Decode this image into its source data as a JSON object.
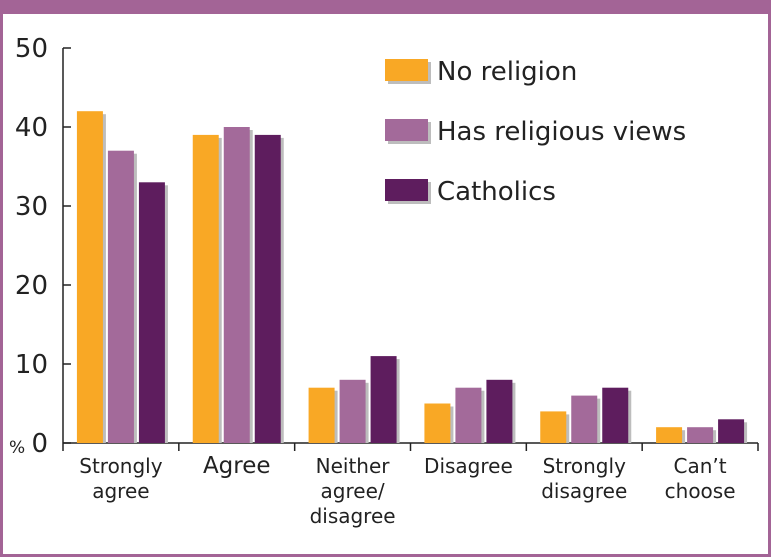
{
  "chart_data": {
    "type": "bar",
    "ylabel": "%",
    "ylim": [
      0,
      50
    ],
    "yticks": [
      0,
      10,
      20,
      30,
      40,
      50
    ],
    "grid": false,
    "legend_position": "top-right",
    "categories": [
      [
        "Strongly",
        "agree"
      ],
      [
        "Agree"
      ],
      [
        "Neither",
        "agree/",
        "disagree"
      ],
      [
        "Disagree"
      ],
      [
        "Strongly",
        "disagree"
      ],
      [
        "Can’t",
        "choose"
      ]
    ],
    "series": [
      {
        "name": "No religion",
        "color": "#f9a825",
        "values": [
          42,
          39,
          7,
          5,
          4,
          2
        ]
      },
      {
        "name": "Has religious views",
        "color": "#a36a9a",
        "values": [
          37,
          40,
          8,
          7,
          6,
          2
        ]
      },
      {
        "name": "Catholics",
        "color": "#5e1d5e",
        "values": [
          33,
          39,
          11,
          8,
          7,
          3
        ]
      }
    ],
    "colors": {
      "frame": "#a36496",
      "axis": "#222222"
    }
  }
}
